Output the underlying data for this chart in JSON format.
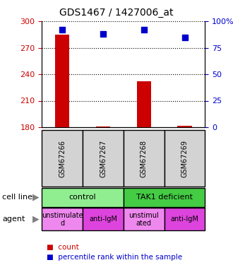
{
  "title": "GDS1467 / 1427006_at",
  "samples": [
    "GSM67266",
    "GSM67267",
    "GSM67268",
    "GSM67269"
  ],
  "counts": [
    285,
    181,
    232,
    182
  ],
  "percentiles": [
    92,
    88,
    92,
    85
  ],
  "ylim_left": [
    180,
    300
  ],
  "ylim_right": [
    0,
    100
  ],
  "yticks_left": [
    180,
    210,
    240,
    270,
    300
  ],
  "yticks_right": [
    0,
    25,
    50,
    75,
    100
  ],
  "bar_color": "#cc0000",
  "dot_color": "#0000cc",
  "cell_line_groups": [
    {
      "label": "control",
      "span": [
        0,
        2
      ],
      "color": "#90ee90"
    },
    {
      "label": "TAK1 deficient",
      "span": [
        2,
        4
      ],
      "color": "#44cc44"
    }
  ],
  "agent_groups": [
    {
      "label": "unstimulate\nd",
      "span": [
        0,
        1
      ],
      "color": "#ee88ee"
    },
    {
      "label": "anti-IgM",
      "span": [
        1,
        2
      ],
      "color": "#dd44dd"
    },
    {
      "label": "unstimul\nated",
      "span": [
        2,
        3
      ],
      "color": "#ee88ee"
    },
    {
      "label": "anti-IgM",
      "span": [
        3,
        4
      ],
      "color": "#dd44dd"
    }
  ],
  "legend_count_color": "#cc0000",
  "legend_pct_color": "#0000cc",
  "left_tick_color": "#cc0000",
  "right_tick_color": "#0000cc",
  "sample_box_color": "#d3d3d3"
}
